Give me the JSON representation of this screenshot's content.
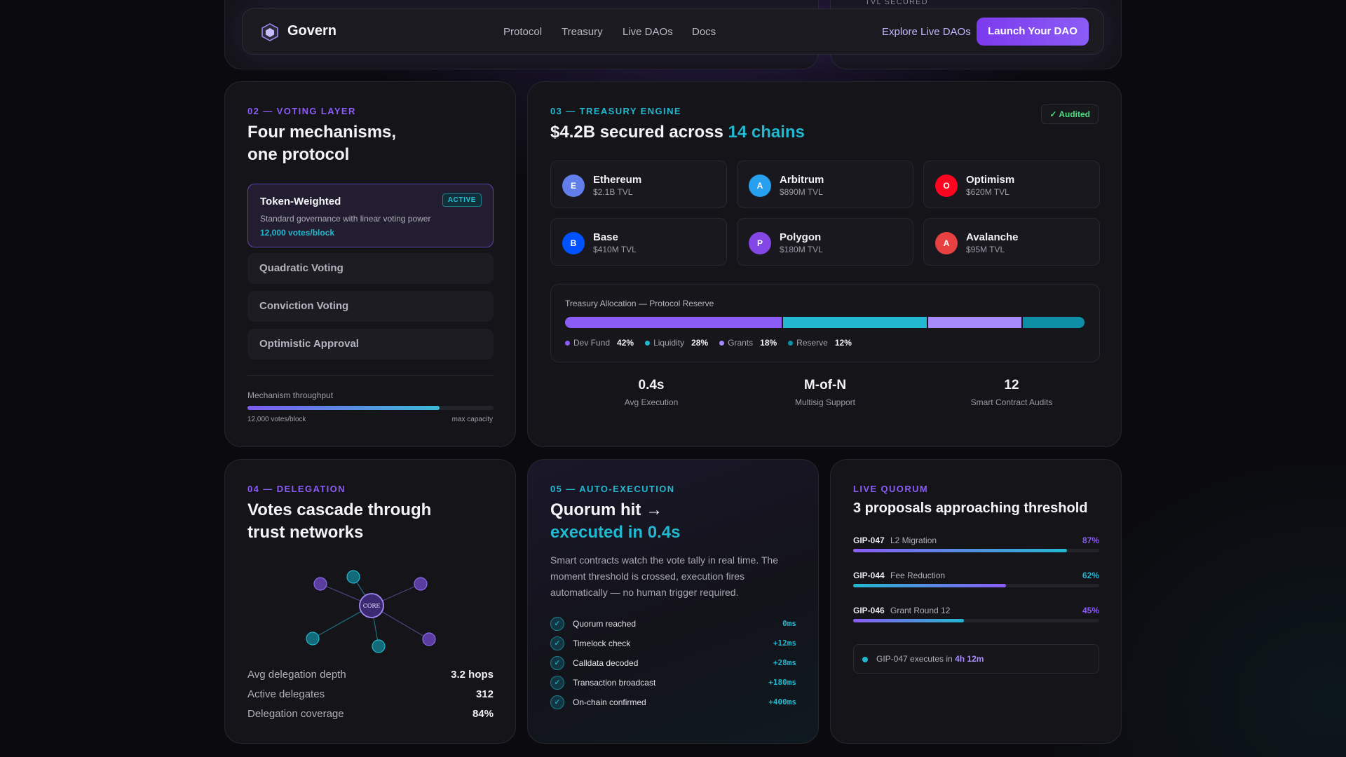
{
  "top": {
    "tvl_label": "TVL SECURED"
  },
  "nav": {
    "brand": "Govern",
    "links": [
      "Protocol",
      "Treasury",
      "Live DAOs",
      "Docs"
    ],
    "explore": "Explore Live DAOs",
    "launch": "Launch Your DAO"
  },
  "voting": {
    "eyebrow": "02 — VOTING LAYER",
    "title_line1": "Four mechanisms,",
    "title_line2": "one protocol",
    "active": {
      "name": "Token-Weighted",
      "badge": "ACTIVE",
      "desc": "Standard governance with linear voting power",
      "rate": "12,000 votes/block"
    },
    "mechanisms": [
      "Quadratic Voting",
      "Conviction Voting",
      "Optimistic Approval"
    ],
    "throughput_label": "Mechanism throughput",
    "throughput_fraction": 0.78,
    "throughput_min": "12,000 votes/block",
    "throughput_max": "max capacity"
  },
  "treasury": {
    "eyebrow": "03 — TREASURY ENGINE",
    "title_prefix": "$4.2B secured across ",
    "title_highlight": "14 chains",
    "audited": "✓ Audited",
    "chains": [
      {
        "letter": "E",
        "name": "Ethereum",
        "tvl": "$2.1B TVL",
        "color": "#627eea"
      },
      {
        "letter": "A",
        "name": "Arbitrum",
        "tvl": "$890M TVL",
        "color": "#28a0f0"
      },
      {
        "letter": "O",
        "name": "Optimism",
        "tvl": "$620M TVL",
        "color": "#ff0420"
      },
      {
        "letter": "B",
        "name": "Base",
        "tvl": "$410M TVL",
        "color": "#0052ff"
      },
      {
        "letter": "P",
        "name": "Polygon",
        "tvl": "$180M TVL",
        "color": "#8247e5"
      },
      {
        "letter": "A",
        "name": "Avalanche",
        "tvl": "$95M TVL",
        "color": "#e84142"
      }
    ],
    "allocation_title": "Treasury Allocation — Protocol Reserve",
    "allocation": [
      {
        "name": "Dev Fund",
        "pct": 42,
        "label": "42%",
        "color": "#8b5cf6"
      },
      {
        "name": "Liquidity",
        "pct": 28,
        "label": "28%",
        "color": "#22b8cf"
      },
      {
        "name": "Grants",
        "pct": 18,
        "label": "18%",
        "color": "#a78bfa"
      },
      {
        "name": "Reserve",
        "pct": 12,
        "label": "12%",
        "color": "#0e8fa6"
      }
    ],
    "stats": [
      {
        "value": "0.4s",
        "label": "Avg Execution"
      },
      {
        "value": "M-of-N",
        "label": "Multisig Support"
      },
      {
        "value": "12",
        "label": "Smart Contract Audits"
      }
    ]
  },
  "delegation": {
    "eyebrow": "04 — DELEGATION",
    "title_line1": "Votes cascade through",
    "title_line2": "trust networks",
    "core_label": "CORE",
    "stats": [
      {
        "label": "Avg delegation depth",
        "value": "3.2 hops"
      },
      {
        "label": "Active delegates",
        "value": "312"
      },
      {
        "label": "Delegation coverage",
        "value": "84%"
      }
    ]
  },
  "execution": {
    "eyebrow": "05 — AUTO-EXECUTION",
    "title_line1": "Quorum hit →",
    "title_line2": "executed in 0.4s",
    "description": "Smart contracts watch the vote tally in real time. The moment threshold is crossed, execution fires automatically — no human trigger required.",
    "steps": [
      {
        "label": "Quorum reached",
        "time": "0ms"
      },
      {
        "label": "Timelock check",
        "time": "+12ms"
      },
      {
        "label": "Calldata decoded",
        "time": "+28ms"
      },
      {
        "label": "Transaction broadcast",
        "time": "+180ms"
      },
      {
        "label": "On-chain confirmed",
        "time": "+400ms"
      }
    ]
  },
  "quorum": {
    "eyebrow": "LIVE QUORUM",
    "title": "3 proposals approaching threshold",
    "proposals": [
      {
        "id": "GIP-047",
        "name": "L2 Migration",
        "pct_label": "87%",
        "pct": 87
      },
      {
        "id": "GIP-044",
        "name": "Fee Reduction",
        "pct_label": "62%",
        "pct": 62
      },
      {
        "id": "GIP-046",
        "name": "Grant Round 12",
        "pct_label": "45%",
        "pct": 45
      }
    ],
    "notice_prefix": "GIP-047 executes in ",
    "notice_time": "4h 12m"
  }
}
